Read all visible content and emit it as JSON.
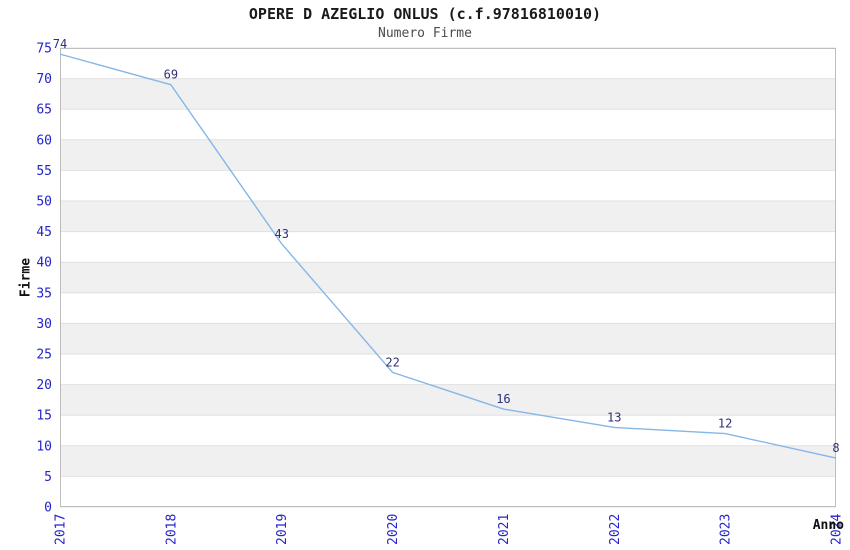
{
  "figure": {
    "title": "OPERE D AZEGLIO ONLUS (c.f.97816810010)",
    "subtitle": "Numero Firme"
  },
  "chart_data": {
    "type": "line",
    "title": "OPERE D AZEGLIO ONLUS (c.f.97816810010)",
    "subtitle": "Numero Firme",
    "xlabel": "Anno",
    "ylabel": "Firme",
    "categories": [
      "2017",
      "2018",
      "2019",
      "2020",
      "2021",
      "2022",
      "2023",
      "2024"
    ],
    "values": [
      74,
      69,
      43,
      22,
      16,
      13,
      12,
      8
    ],
    "point_labels": [
      "74",
      "69",
      "43",
      "22",
      "16",
      "13",
      "12",
      "8"
    ],
    "ylim": [
      0,
      75
    ],
    "ytick_step": 5,
    "legend": "none",
    "grid": "horizontal gridlines with alternating shaded bands",
    "colors": {
      "line": "#85b6e8",
      "tick_label": "#2424cc",
      "point_label": "#30307a",
      "band_fill": "#f0f0f0",
      "gridline": "#e0e0e0",
      "spine": "#bdbdbd",
      "title": "#1a1a1a",
      "subtitle": "#4d4d4d",
      "axis_label": "#111111"
    }
  }
}
